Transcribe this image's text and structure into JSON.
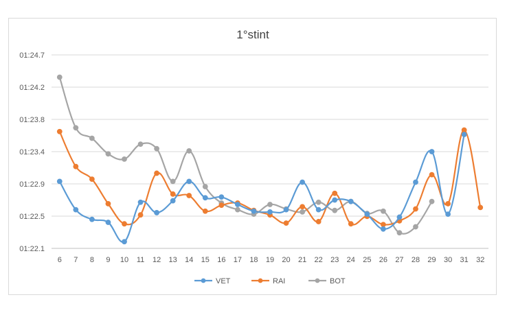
{
  "chart_data": {
    "type": "line",
    "title": "1°stint",
    "xlabel": "",
    "ylabel": "",
    "x": [
      "6",
      "7",
      "8",
      "9",
      "10",
      "11",
      "12",
      "13",
      "14",
      "15",
      "16",
      "17",
      "18",
      "19",
      "20",
      "21",
      "22",
      "23",
      "24",
      "25",
      "26",
      "27",
      "28",
      "29",
      "30",
      "31",
      "32"
    ],
    "y_ticks": [
      "01:22.1",
      "01:22.5",
      "01:22.9",
      "01:23.4",
      "01:23.8",
      "01:24.2",
      "01:24.7"
    ],
    "ylim": [
      82.1,
      84.7
    ],
    "grid": "horizontal",
    "legend_position": "bottom",
    "series": [
      {
        "name": "VET",
        "color": "#5B9BD5",
        "values": [
          83.0,
          82.62,
          82.49,
          82.45,
          82.19,
          82.72,
          82.58,
          82.74,
          83.0,
          82.78,
          82.79,
          82.69,
          82.6,
          82.59,
          82.62,
          82.99,
          82.62,
          82.75,
          82.73,
          82.56,
          82.36,
          82.52,
          82.99,
          83.4,
          82.56,
          83.63,
          null
        ]
      },
      {
        "name": "RAI",
        "color": "#ED7D31",
        "values": [
          83.67,
          83.2,
          83.03,
          82.7,
          82.43,
          82.55,
          83.11,
          82.83,
          82.81,
          82.6,
          82.68,
          82.71,
          82.61,
          82.55,
          82.44,
          82.66,
          82.46,
          82.84,
          82.43,
          82.53,
          82.42,
          82.47,
          82.63,
          83.09,
          82.7,
          83.69,
          82.65
        ]
      },
      {
        "name": "BOT",
        "color": "#A5A5A5",
        "values": [
          84.4,
          83.72,
          83.58,
          83.37,
          83.3,
          83.5,
          83.44,
          83.0,
          83.41,
          82.93,
          82.71,
          82.62,
          82.56,
          82.69,
          82.63,
          82.59,
          82.72,
          82.61,
          82.73,
          82.57,
          82.6,
          82.31,
          82.39,
          82.73,
          null,
          null,
          null
        ]
      }
    ]
  }
}
